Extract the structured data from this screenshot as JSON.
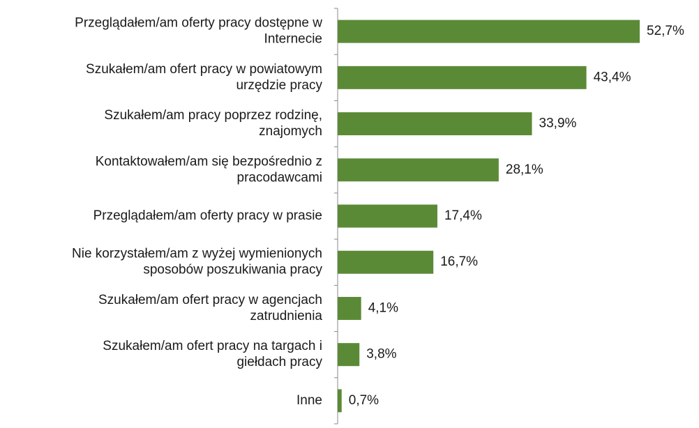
{
  "chart_data": {
    "type": "bar",
    "orientation": "horizontal",
    "categories": [
      "Przeglądałem/am oferty pracy dostępne w\nInternecie",
      "Szukałem/am ofert pracy w powiatowym\nurzędzie pracy",
      "Szukałem/am pracy poprzez rodzinę,\nznajomych",
      "Kontaktowałem/am się bezpośrednio z\npracodawcami",
      "Przeglądałem/am oferty pracy w prasie",
      "Nie korzystałem/am z wyżej wymienionych\nsposobów poszukiwania pracy",
      "Szukałem/am ofert pracy w agencjach\nzatrudnienia",
      "Szukałem/am ofert pracy na targach i\ngiełdach pracy",
      "Inne"
    ],
    "values": [
      52.7,
      43.4,
      33.9,
      28.1,
      17.4,
      16.7,
      4.1,
      3.8,
      0.7
    ],
    "value_labels": [
      "52,7%",
      "43,4%",
      "33,9%",
      "28,1%",
      "17,4%",
      "16,7%",
      "4,1%",
      "3,8%",
      "0,7%"
    ],
    "color": "#5b8a37",
    "xlim": [
      0,
      60
    ]
  }
}
